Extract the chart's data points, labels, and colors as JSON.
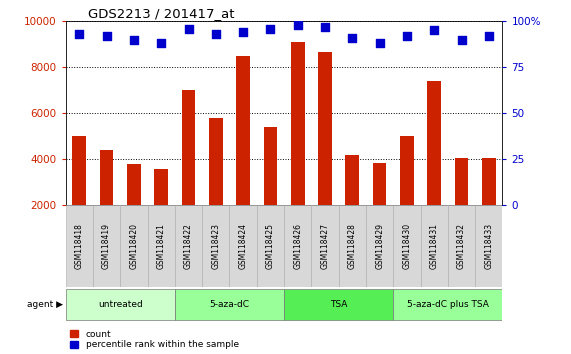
{
  "title": "GDS2213 / 201417_at",
  "samples": [
    "GSM118418",
    "GSM118419",
    "GSM118420",
    "GSM118421",
    "GSM118422",
    "GSM118423",
    "GSM118424",
    "GSM118425",
    "GSM118426",
    "GSM118427",
    "GSM118428",
    "GSM118429",
    "GSM118430",
    "GSM118431",
    "GSM118432",
    "GSM118433"
  ],
  "counts": [
    5000,
    4400,
    3800,
    3600,
    7000,
    5800,
    8500,
    5400,
    9100,
    8650,
    4200,
    3850,
    5000,
    7400,
    4050,
    4050
  ],
  "percentiles": [
    93,
    92,
    90,
    88,
    96,
    93,
    94,
    96,
    98,
    97,
    91,
    88,
    92,
    95,
    90,
    92
  ],
  "bar_color": "#cc2200",
  "dot_color": "#0000cc",
  "ylim_left": [
    2000,
    10000
  ],
  "ylim_right": [
    0,
    100
  ],
  "yticks_left": [
    2000,
    4000,
    6000,
    8000,
    10000
  ],
  "yticks_right": [
    0,
    25,
    50,
    75,
    100
  ],
  "groups": [
    {
      "label": "untreated",
      "start": 0,
      "end": 4,
      "color": "#ccffcc"
    },
    {
      "label": "5-aza-dC",
      "start": 4,
      "end": 8,
      "color": "#99ff99"
    },
    {
      "label": "TSA",
      "start": 8,
      "end": 12,
      "color": "#55ee55"
    },
    {
      "label": "5-aza-dC plus TSA",
      "start": 12,
      "end": 16,
      "color": "#99ff99"
    }
  ],
  "agent_label": "agent",
  "legend_count_label": "count",
  "legend_pct_label": "percentile rank within the sample",
  "grid_color": "#000000",
  "background_color": "#ffffff",
  "plot_bg_color": "#ffffff",
  "tick_label_color_left": "#cc2200",
  "tick_label_color_right": "#0000cc",
  "title_color": "#000000",
  "bar_width": 0.5,
  "dot_size": 28,
  "dot_marker": "s",
  "figsize": [
    5.71,
    3.54
  ],
  "dpi": 100
}
